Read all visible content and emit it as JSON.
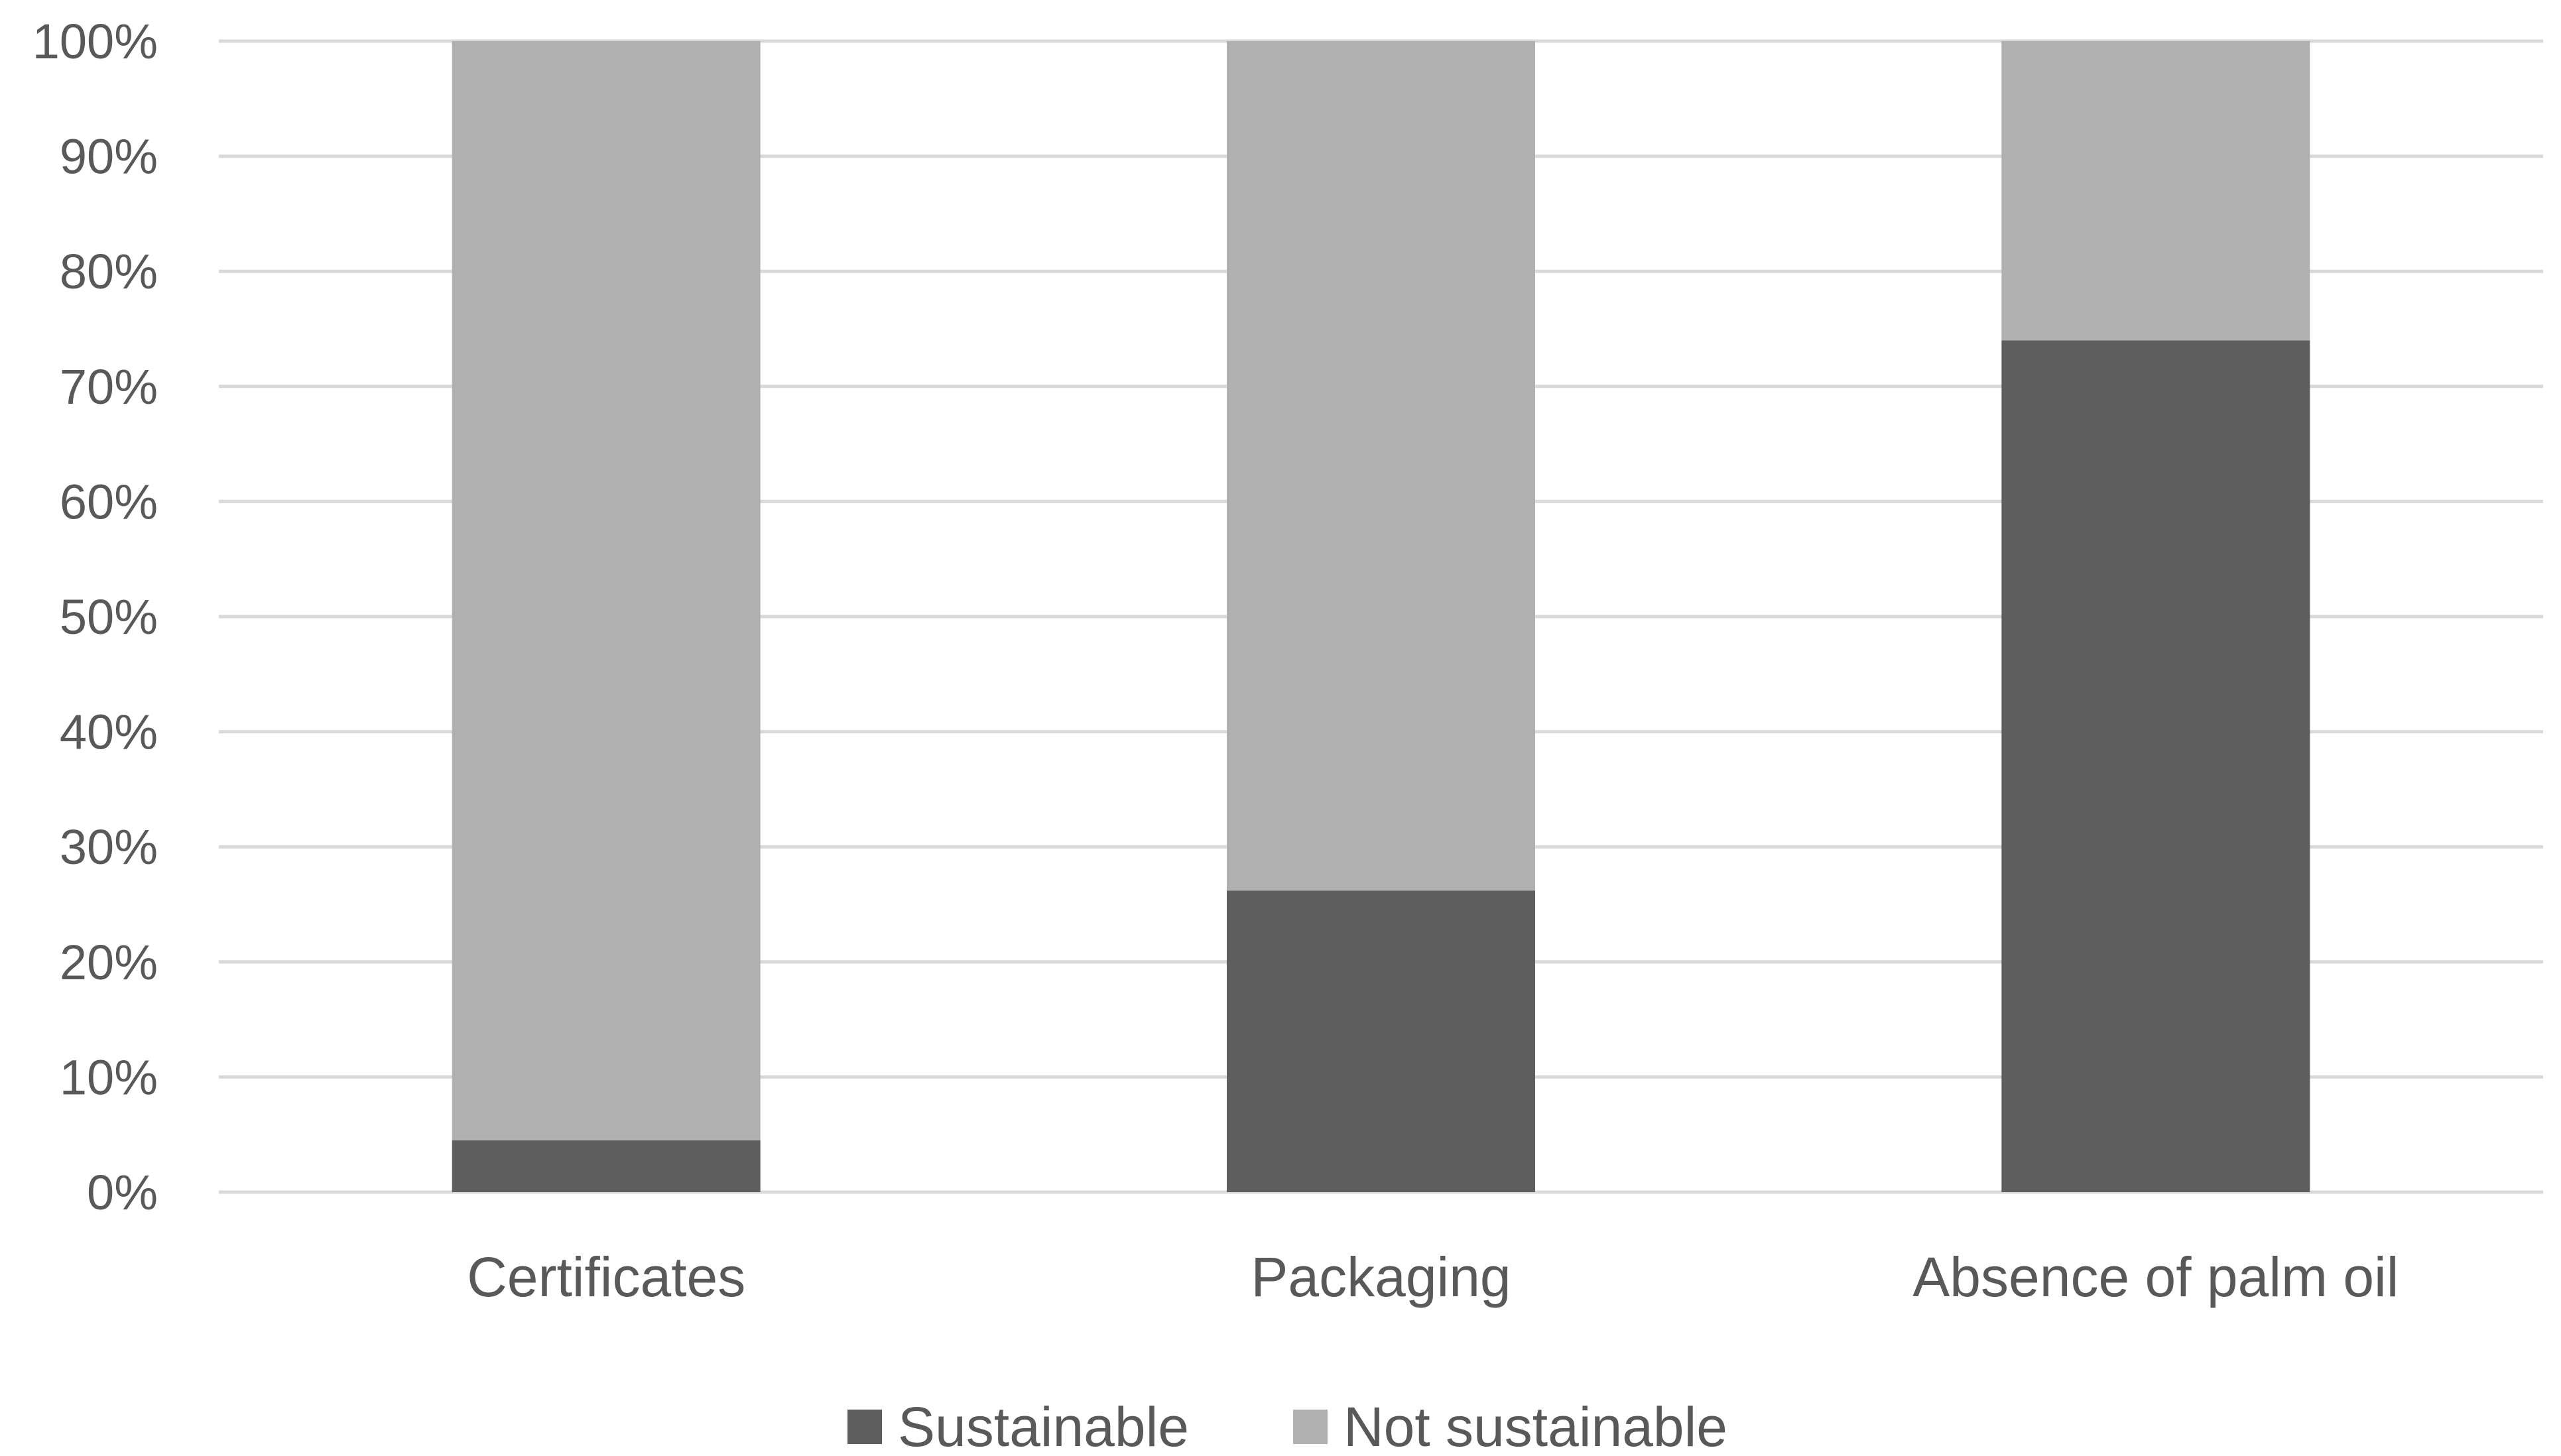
{
  "chart_data": {
    "type": "bar",
    "stacked": true,
    "categories": [
      "Certificates",
      "Packaging",
      "Absence of palm oil"
    ],
    "series": [
      {
        "name": "Sustainable",
        "color": "#5e5e5e",
        "values": [
          4.5,
          26.2,
          74.0
        ]
      },
      {
        "name": "Not sustainable",
        "color": "#b0b0b0",
        "values": [
          95.5,
          73.8,
          26.0
        ]
      }
    ],
    "yticks": [
      "0%",
      "10%",
      "20%",
      "30%",
      "40%",
      "50%",
      "60%",
      "70%",
      "80%",
      "90%",
      "100%"
    ],
    "ylim": [
      0,
      100
    ],
    "grid": true,
    "legend_position": "bottom",
    "title": "",
    "xlabel": "",
    "ylabel": ""
  }
}
